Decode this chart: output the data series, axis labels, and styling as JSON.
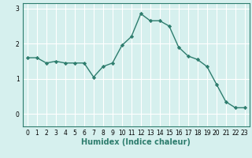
{
  "x": [
    0,
    1,
    2,
    3,
    4,
    5,
    6,
    7,
    8,
    9,
    10,
    11,
    12,
    13,
    14,
    15,
    16,
    17,
    18,
    19,
    20,
    21,
    22,
    23
  ],
  "y": [
    1.6,
    1.6,
    1.45,
    1.5,
    1.45,
    1.45,
    1.45,
    1.05,
    1.35,
    1.45,
    1.95,
    2.2,
    2.85,
    2.65,
    2.65,
    2.5,
    1.9,
    1.65,
    1.55,
    1.35,
    0.85,
    0.35,
    0.18,
    0.18
  ],
  "line_color": "#2e7d6e",
  "marker": "D",
  "marker_size": 2.2,
  "linewidth": 1.0,
  "xlabel": "Humidex (Indice chaleur)",
  "xlabel_fontsize": 7,
  "background_color": "#d6f0ee",
  "grid_color": "#ffffff",
  "ylim": [
    -0.35,
    3.15
  ],
  "xlim": [
    -0.5,
    23.5
  ],
  "yticks": [
    0,
    1,
    2,
    3
  ],
  "xticks": [
    0,
    1,
    2,
    3,
    4,
    5,
    6,
    7,
    8,
    9,
    10,
    11,
    12,
    13,
    14,
    15,
    16,
    17,
    18,
    19,
    20,
    21,
    22,
    23
  ],
  "tick_fontsize": 5.5,
  "ylabel_fontsize": 7,
  "grid_linewidth": 0.8
}
